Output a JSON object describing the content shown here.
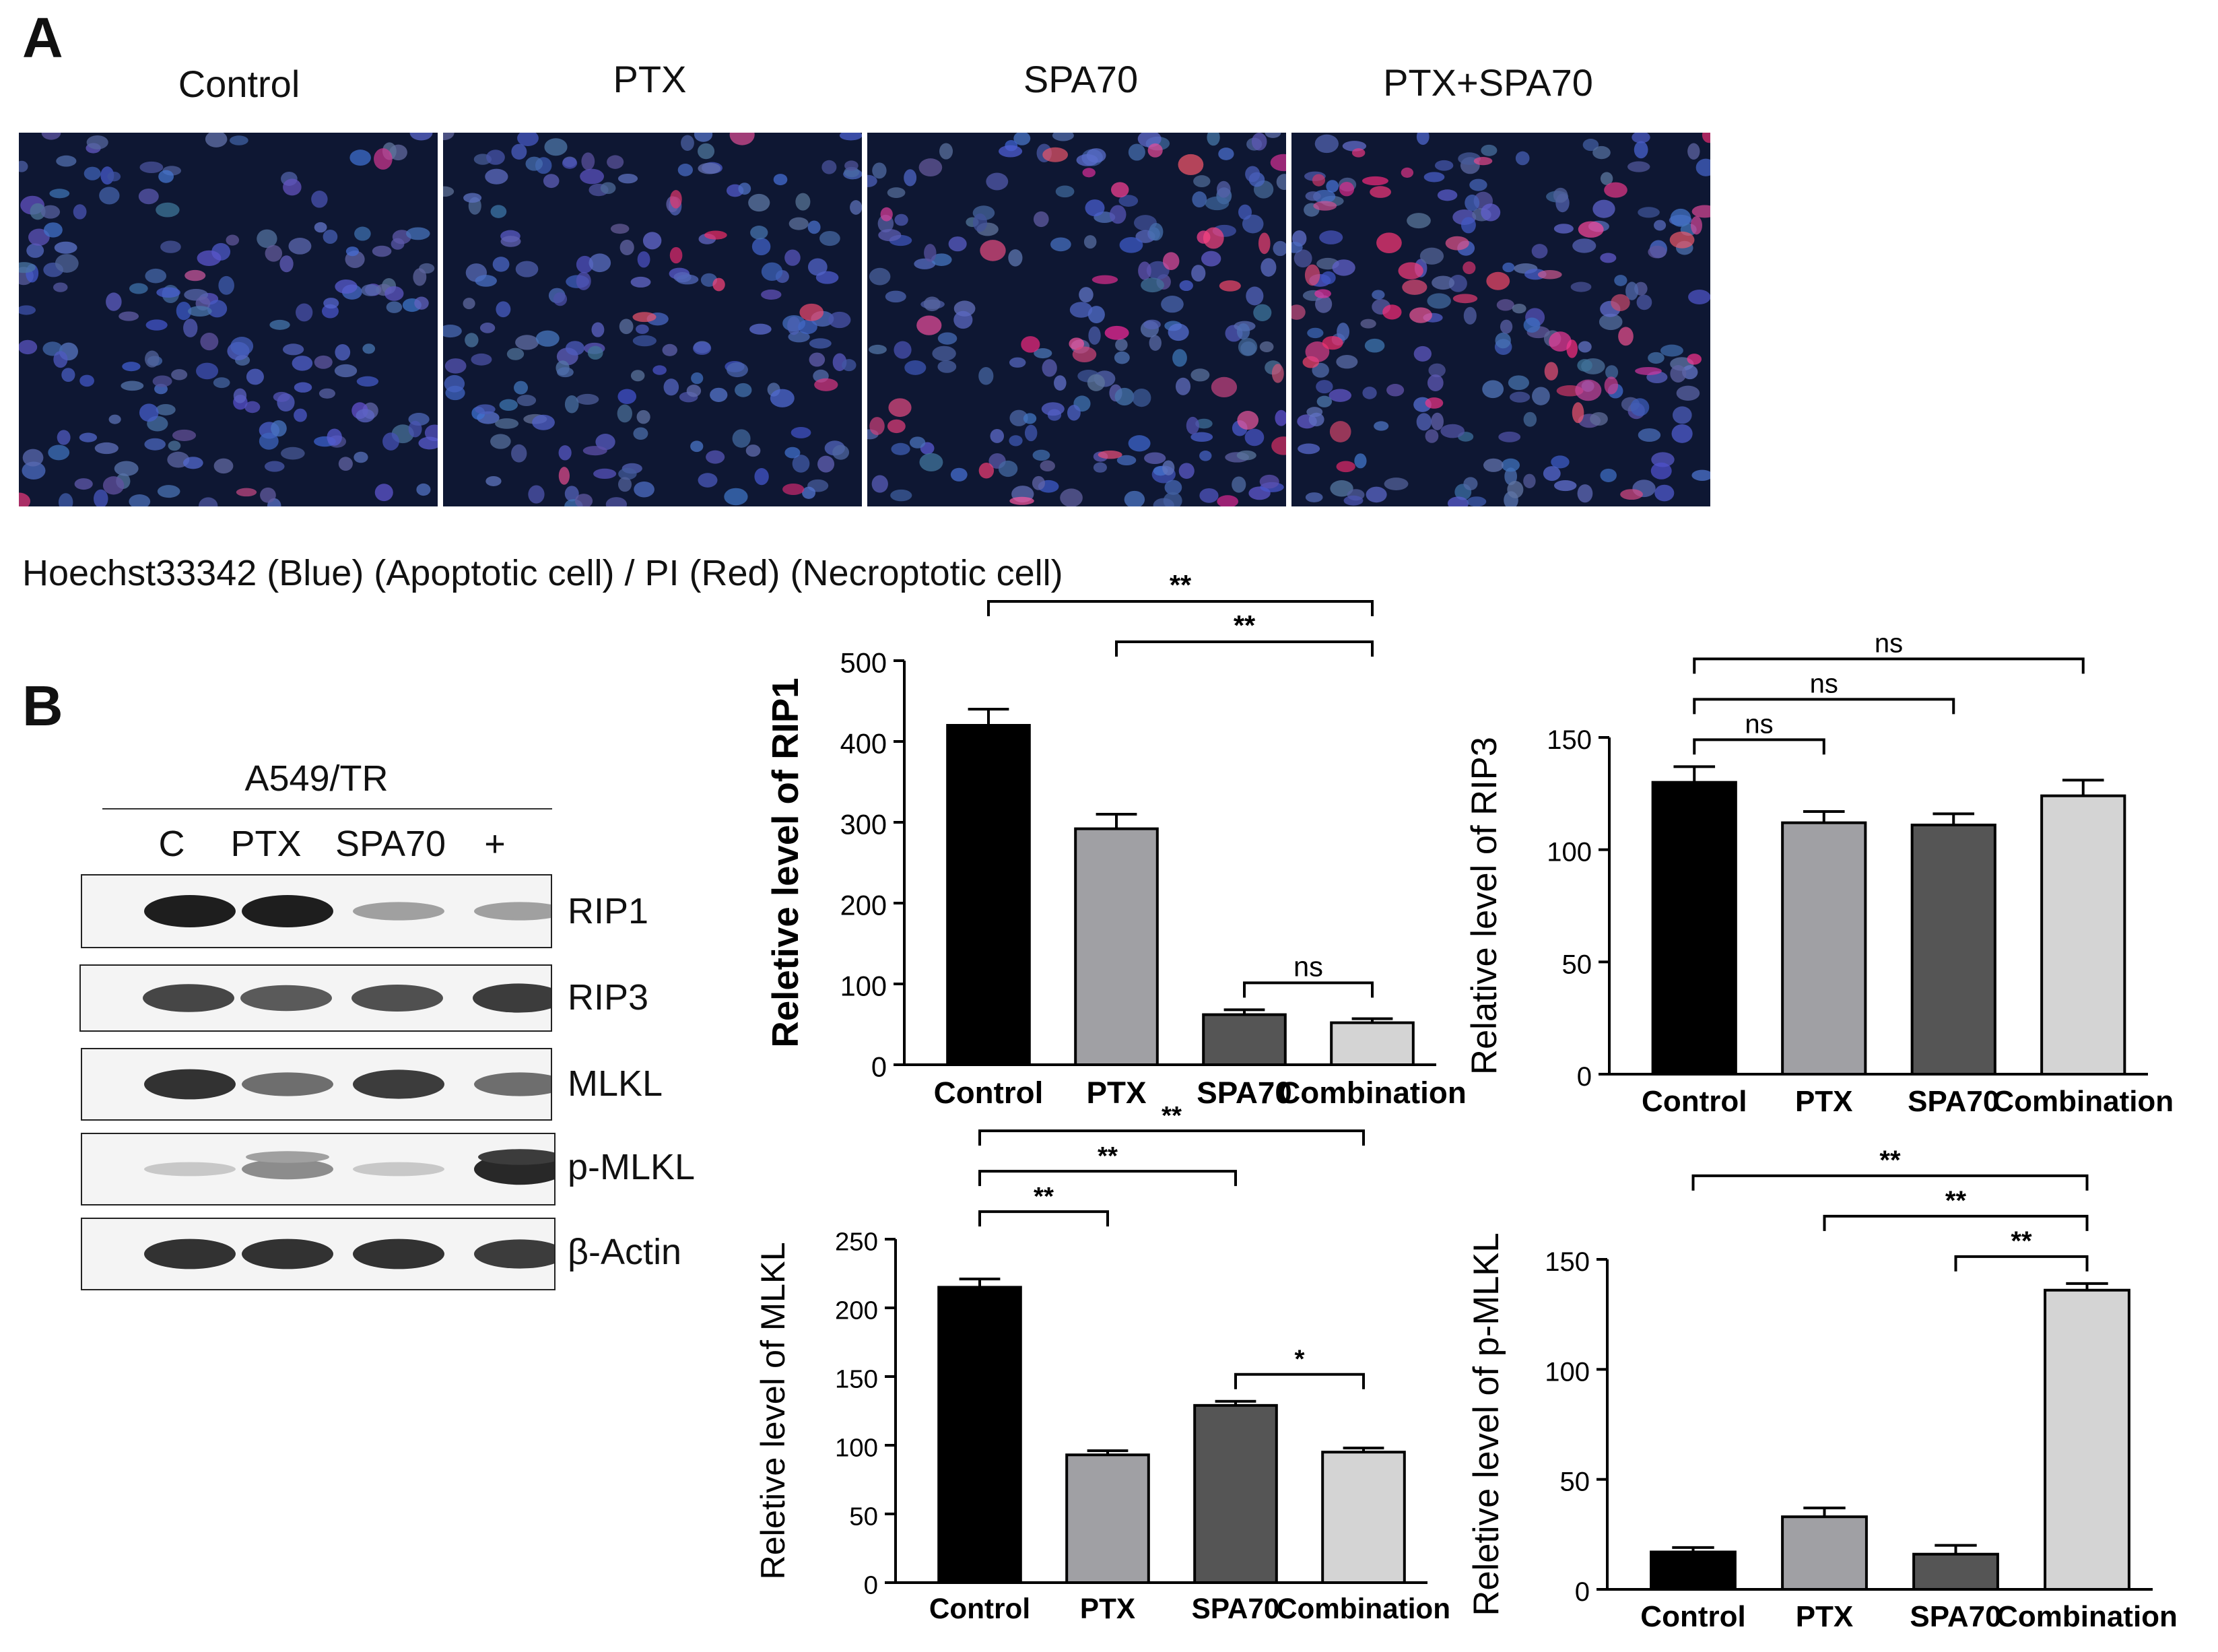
{
  "panelA": {
    "letter": "A",
    "conditions": [
      "Control",
      "PTX",
      "SPA70",
      "PTX+SPA70"
    ],
    "caption": "Hoechst33342 (Blue) (Apoptotic cell) / PI (Red) (Necroptotic cell)"
  },
  "panelB": {
    "letter": "B",
    "cell_line": "A549/TR",
    "lanes": [
      "C",
      "PTX",
      "SPA70",
      "+"
    ],
    "proteins": [
      "RIP1",
      "RIP3",
      "MLKL",
      "p-MLKL",
      "β-Actin"
    ],
    "band_intensity": [
      [
        1.0,
        1.0,
        0.35,
        0.35
      ],
      [
        0.8,
        0.7,
        0.75,
        0.85
      ],
      [
        0.9,
        0.6,
        0.85,
        0.6
      ],
      [
        0.15,
        0.45,
        0.15,
        0.95
      ],
      [
        0.9,
        0.9,
        0.9,
        0.85
      ]
    ]
  },
  "colors": {
    "control": "#000000",
    "ptx": "#a0a0a4",
    "spa70": "#555555",
    "combination": "#d4d4d4"
  },
  "chart_data": [
    {
      "type": "bar",
      "ylabel": "Reletive level of RIP1",
      "categories": [
        "Control",
        "PTX",
        "SPA70",
        "Combination"
      ],
      "values": [
        420,
        292,
        62,
        52
      ],
      "errors": [
        20,
        18,
        6,
        5
      ],
      "ylim": [
        0,
        500
      ],
      "yticks": [
        0,
        100,
        200,
        300,
        400,
        500
      ],
      "significance": [
        {
          "from": 0,
          "to": 3,
          "label": "**",
          "level": 1
        },
        {
          "from": 1,
          "to": 3,
          "label": "**",
          "level": 2
        },
        {
          "from": 2,
          "to": 3,
          "label": "ns",
          "level": 3
        }
      ]
    },
    {
      "type": "bar",
      "ylabel": "Relative level of RIP3",
      "categories": [
        "Control",
        "PTX",
        "SPA70",
        "Combination"
      ],
      "values": [
        130,
        112,
        111,
        124
      ],
      "errors": [
        7,
        5,
        5,
        7
      ],
      "ylim": [
        0,
        150
      ],
      "yticks": [
        0,
        50,
        100,
        150
      ],
      "significance": [
        {
          "from": 0,
          "to": 3,
          "label": "ns",
          "level": 1
        },
        {
          "from": 0,
          "to": 2,
          "label": "ns",
          "level": 2
        },
        {
          "from": 0,
          "to": 1,
          "label": "ns",
          "level": 3
        }
      ]
    },
    {
      "type": "bar",
      "ylabel": "Reletive level of MLKL",
      "categories": [
        "Control",
        "PTX",
        "SPA70",
        "Combination"
      ],
      "values": [
        215,
        93,
        129,
        95
      ],
      "errors": [
        6,
        3,
        3,
        3
      ],
      "ylim": [
        0,
        250
      ],
      "yticks": [
        0,
        50,
        100,
        150,
        200,
        250
      ],
      "significance": [
        {
          "from": 0,
          "to": 3,
          "label": "**",
          "level": 1
        },
        {
          "from": 0,
          "to": 2,
          "label": "**",
          "level": 2
        },
        {
          "from": 0,
          "to": 1,
          "label": "**",
          "level": 3
        },
        {
          "from": 2,
          "to": 3,
          "label": "*",
          "level": 4
        }
      ]
    },
    {
      "type": "bar",
      "ylabel": "Reletive level of p-MLKL",
      "categories": [
        "Control",
        "PTX",
        "SPA70",
        "Combination"
      ],
      "values": [
        17,
        33,
        16,
        136
      ],
      "errors": [
        2,
        4,
        4,
        3
      ],
      "ylim": [
        0,
        150
      ],
      "yticks": [
        0,
        50,
        100,
        150
      ],
      "significance": [
        {
          "from": 0,
          "to": 3,
          "label": "**",
          "level": 1
        },
        {
          "from": 1,
          "to": 3,
          "label": "**",
          "level": 2
        },
        {
          "from": 2,
          "to": 3,
          "label": "**",
          "level": 3
        }
      ]
    }
  ]
}
